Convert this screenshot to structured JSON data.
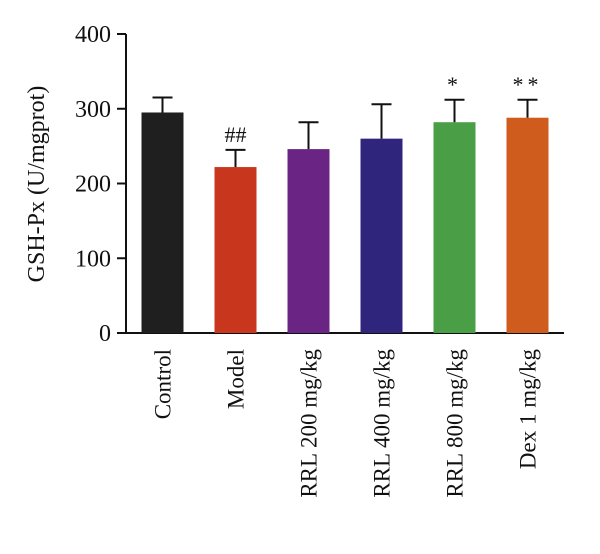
{
  "chart_data": {
    "type": "bar",
    "title": "",
    "xlabel": "",
    "ylabel": "GSH-Px (U/mgprot)",
    "ylim": [
      0,
      400
    ],
    "yticks": [
      0,
      100,
      200,
      300,
      400
    ],
    "grid": false,
    "categories": [
      "Control",
      "Model",
      "RRL 200 mg/kg",
      "RRL 400 mg/kg",
      "RRL 800 mg/kg",
      "Dex 1 mg/kg"
    ],
    "values": [
      295,
      222,
      246,
      260,
      282,
      288
    ],
    "error_upper": [
      20,
      23,
      36,
      46,
      30,
      24
    ],
    "annotations": [
      "",
      "##",
      "",
      "",
      "*",
      "**"
    ],
    "colors": [
      "#1f1f1f",
      "#c8371d",
      "#6a2483",
      "#2f257c",
      "#4a9e46",
      "#cf5b1c"
    ]
  }
}
